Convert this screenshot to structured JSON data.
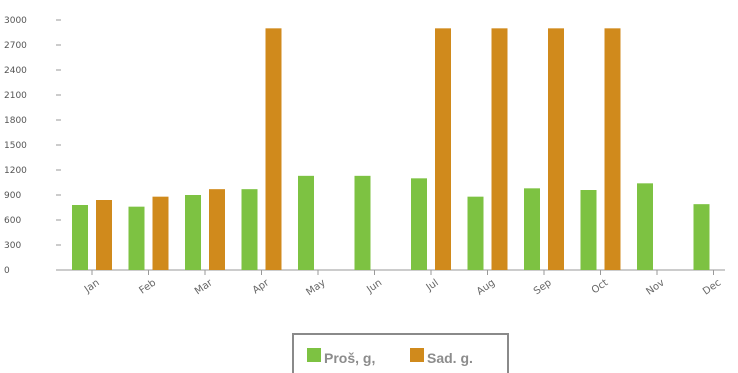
{
  "chart_data": {
    "type": "bar",
    "categories": [
      "Jan",
      "Feb",
      "Mar",
      "Apr",
      "May",
      "Jun",
      "Jul",
      "Aug",
      "Sep",
      "Oct",
      "Nov",
      "Dec"
    ],
    "series": [
      {
        "name": "Proš, g,",
        "color": "#7dc242",
        "values": [
          780,
          760,
          900,
          970,
          1130,
          1130,
          1100,
          880,
          980,
          960,
          1040,
          790
        ]
      },
      {
        "name": "Sad. g.",
        "color": "#d08a1c",
        "values": [
          840,
          880,
          970,
          2900,
          null,
          null,
          2900,
          2900,
          2900,
          2900,
          null,
          null
        ]
      }
    ],
    "y_ticks": [
      "0",
      "300",
      "600",
      "900",
      "1200",
      "1500",
      "1800",
      "2100",
      "2400",
      "2700",
      "3000"
    ],
    "ylim": [
      0,
      3000
    ],
    "xlabel": "",
    "ylabel": "",
    "grid": false,
    "legend_position": "bottom"
  }
}
